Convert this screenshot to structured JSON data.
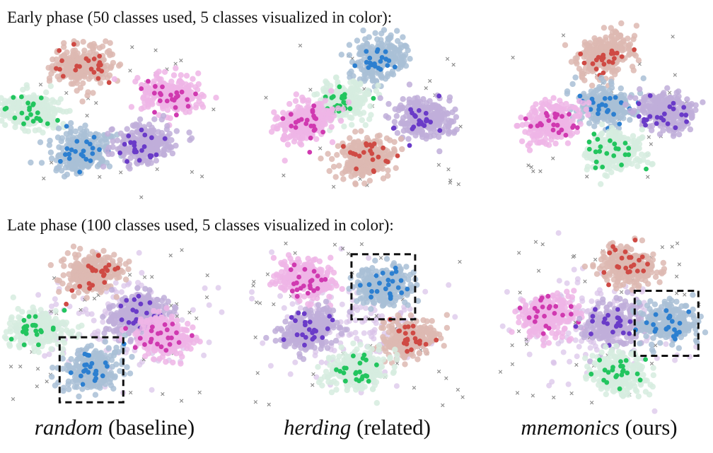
{
  "early_title": "Early phase (50 classes used, 5 classes visualized in color):",
  "late_title": "Late phase (100 classes used, 5 classes visualized in color):",
  "captions": [
    {
      "method": "random",
      "note": " (baseline)"
    },
    {
      "method": "herding",
      "note": " (related)"
    },
    {
      "method": "mnemonics",
      "note": " (ours)"
    }
  ],
  "colors": {
    "red": {
      "light": "#ddb8b2",
      "dark": "#cf4a44"
    },
    "pink": {
      "light": "#efb5e6",
      "dark": "#d039b0"
    },
    "green": {
      "light": "#d6ecdf",
      "dark": "#22c55e"
    },
    "blue": {
      "light": "#a9c0d6",
      "dark": "#2c7fd0"
    },
    "purple": {
      "light": "#bfaed9",
      "dark": "#6a3bc8"
    },
    "other_points": "#d9c2e8",
    "cross": "#8a8a8a",
    "highlight_box": "#111111"
  },
  "chart_data": [
    {
      "type": "scatter",
      "phase": "early",
      "method": "random",
      "classes": [
        {
          "color": "red",
          "center": [
            -0.35,
            0.75
          ]
        },
        {
          "color": "pink",
          "center": [
            0.65,
            0.3
          ]
        },
        {
          "color": "green",
          "center": [
            -0.95,
            0.05
          ]
        },
        {
          "color": "blue",
          "center": [
            -0.35,
            -0.55
          ]
        },
        {
          "color": "purple",
          "center": [
            0.35,
            -0.45
          ]
        }
      ],
      "highlight": null
    },
    {
      "type": "scatter",
      "phase": "early",
      "method": "herding",
      "classes": [
        {
          "color": "blue",
          "center": [
            0.25,
            0.85
          ]
        },
        {
          "color": "green",
          "center": [
            -0.15,
            0.2
          ]
        },
        {
          "color": "pink",
          "center": [
            -0.6,
            -0.1
          ]
        },
        {
          "color": "purple",
          "center": [
            0.75,
            -0.05
          ]
        },
        {
          "color": "red",
          "center": [
            0.1,
            -0.65
          ]
        }
      ],
      "highlight": null
    },
    {
      "type": "scatter",
      "phase": "early",
      "method": "mnemonics",
      "classes": [
        {
          "color": "red",
          "center": [
            0.05,
            0.9
          ]
        },
        {
          "color": "blue",
          "center": [
            0.05,
            0.15
          ]
        },
        {
          "color": "pink",
          "center": [
            -0.55,
            -0.1
          ]
        },
        {
          "color": "purple",
          "center": [
            0.75,
            0.05
          ]
        },
        {
          "color": "green",
          "center": [
            0.15,
            -0.55
          ]
        }
      ],
      "highlight": null
    },
    {
      "type": "scatter",
      "phase": "late",
      "method": "random",
      "classes": [
        {
          "color": "red",
          "center": [
            -0.25,
            0.75
          ]
        },
        {
          "color": "purple",
          "center": [
            0.3,
            0.15
          ]
        },
        {
          "color": "pink",
          "center": [
            0.6,
            -0.2
          ]
        },
        {
          "color": "green",
          "center": [
            -0.85,
            -0.1
          ]
        },
        {
          "color": "blue",
          "center": [
            -0.25,
            -0.7
          ]
        }
      ],
      "highlight": "blue"
    },
    {
      "type": "scatter",
      "phase": "late",
      "method": "herding",
      "classes": [
        {
          "color": "pink",
          "center": [
            -0.6,
            0.65
          ]
        },
        {
          "color": "blue",
          "center": [
            0.3,
            0.55
          ]
        },
        {
          "color": "purple",
          "center": [
            -0.55,
            -0.1
          ]
        },
        {
          "color": "red",
          "center": [
            0.6,
            -0.25
          ]
        },
        {
          "color": "green",
          "center": [
            0.0,
            -0.7
          ]
        }
      ],
      "highlight": "blue"
    },
    {
      "type": "scatter",
      "phase": "late",
      "method": "mnemonics",
      "classes": [
        {
          "color": "red",
          "center": [
            0.3,
            0.85
          ]
        },
        {
          "color": "pink",
          "center": [
            -0.6,
            0.1
          ]
        },
        {
          "color": "purple",
          "center": [
            0.15,
            0.0
          ]
        },
        {
          "color": "blue",
          "center": [
            0.75,
            0.0
          ]
        },
        {
          "color": "green",
          "center": [
            0.2,
            -0.75
          ]
        }
      ],
      "highlight": "blue"
    }
  ]
}
